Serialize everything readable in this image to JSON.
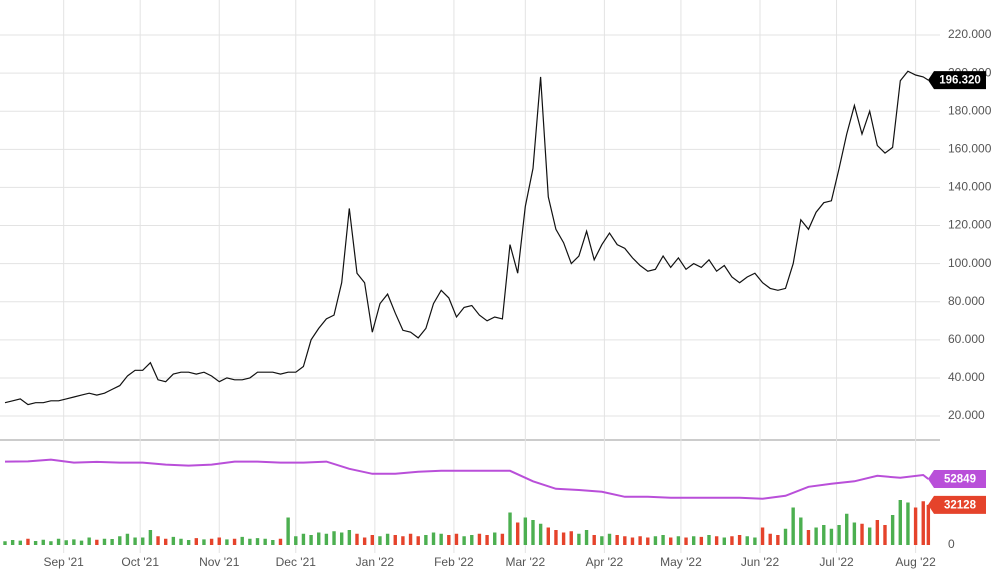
{
  "chart_data": [
    {
      "type": "line",
      "color": "#111111",
      "x": [
        0,
        3,
        6,
        9,
        12,
        15,
        18,
        21,
        24,
        27,
        30,
        33,
        36,
        39,
        42,
        45,
        48,
        51,
        54,
        57,
        60,
        63,
        66,
        69,
        72,
        75,
        78,
        81,
        84,
        87,
        90,
        93,
        96,
        99,
        102,
        105,
        108,
        111,
        114,
        117,
        120,
        123,
        126,
        129,
        132,
        135,
        138,
        141,
        144,
        147,
        150,
        153,
        156,
        159,
        162,
        165,
        168,
        171,
        174,
        177,
        180,
        183,
        186,
        189,
        192,
        195,
        198,
        201,
        204,
        207,
        210,
        213,
        216,
        219,
        222,
        225,
        228,
        231,
        234,
        237,
        240,
        243,
        246,
        249,
        252,
        255,
        258,
        261,
        264,
        267,
        270,
        273,
        276,
        279,
        282,
        285,
        288,
        291,
        294,
        297,
        300,
        303,
        306,
        309,
        312,
        315,
        318,
        321,
        324,
        327,
        330,
        333,
        336,
        339,
        342,
        345,
        348,
        351,
        354,
        357,
        360,
        362
      ],
      "values": [
        27,
        28,
        29,
        26,
        27,
        27,
        28,
        28,
        29,
        30,
        31,
        32,
        31,
        32,
        34,
        36,
        41,
        44,
        44,
        48,
        39,
        38,
        42,
        43,
        43,
        42,
        43,
        41,
        38,
        40,
        39,
        39,
        40,
        43,
        43,
        43,
        42,
        43,
        43,
        46,
        60,
        66,
        71,
        73,
        90,
        129,
        95,
        90,
        64,
        79,
        84,
        74,
        65,
        64,
        61,
        66,
        79,
        86,
        82,
        72,
        77,
        78,
        73,
        70,
        72,
        71,
        110,
        95,
        130,
        150,
        198,
        135,
        118,
        111,
        100,
        104,
        117,
        102,
        110,
        116,
        110,
        108,
        103,
        99,
        96,
        97,
        104,
        98,
        103,
        97,
        100,
        98,
        102,
        96,
        99,
        93,
        90,
        93,
        95,
        90,
        87,
        86,
        87,
        100,
        123,
        118,
        127,
        132,
        133,
        150,
        168,
        183,
        168,
        180,
        162,
        158,
        161,
        196,
        201,
        199,
        198,
        196.32
      ],
      "last_value_label": "196.320",
      "xlim": [
        0,
        365
      ],
      "ylim": [
        9,
        220
      ],
      "yticks": [
        {
          "value": 20,
          "label": "20.000"
        },
        {
          "value": 40,
          "label": "40.000"
        },
        {
          "value": 60,
          "label": "60.000"
        },
        {
          "value": 80,
          "label": "80.000"
        },
        {
          "value": 100,
          "label": "100.000"
        },
        {
          "value": 120,
          "label": "120.000"
        },
        {
          "value": 140,
          "label": "140.000"
        },
        {
          "value": 160,
          "label": "160.000"
        },
        {
          "value": 180,
          "label": "180.000"
        },
        {
          "value": 200,
          "label": "200.000"
        },
        {
          "value": 220,
          "label": "220.000"
        }
      ],
      "grid": true
    },
    {
      "type": "bar",
      "up_color": "#4caf50",
      "down_color": "#e5432b",
      "values": [
        3000,
        4000,
        3500,
        5000,
        3200,
        4200,
        3000,
        5000,
        3800,
        4500,
        3500,
        6000,
        4200,
        5000,
        4800,
        7000,
        9000,
        6000,
        6000,
        12000,
        7000,
        5000,
        6500,
        5000,
        4000,
        5500,
        4500,
        5000,
        6000,
        4500,
        5000,
        6500,
        5000,
        5500,
        5000,
        4000,
        5000,
        22000,
        7000,
        9000,
        8000,
        10000,
        9000,
        11000,
        10000,
        12000,
        9000,
        6000,
        8000,
        7000,
        9000,
        8000,
        7000,
        9000,
        7000,
        8000,
        10000,
        9000,
        8000,
        9000,
        7000,
        8000,
        9000,
        8000,
        10000,
        9000,
        26000,
        18000,
        22000,
        20000,
        17000,
        14000,
        12000,
        10000,
        11000,
        9000,
        12000,
        8000,
        7000,
        9000,
        8000,
        7000,
        6000,
        7000,
        6000,
        7000,
        8000,
        6000,
        7000,
        6000,
        7000,
        6500,
        8000,
        7000,
        6000,
        7000,
        8000,
        7000,
        6000,
        14000,
        9000,
        8000,
        13000,
        30000,
        22000,
        12000,
        14000,
        16000,
        13000,
        16000,
        25000,
        18000,
        17000,
        14000,
        20000,
        16000,
        24000,
        36000,
        34000,
        30000,
        35000,
        32128
      ],
      "line": {
        "color": "#b94fd9",
        "x": [
          0,
          9,
          18,
          27,
          36,
          45,
          54,
          63,
          72,
          81,
          90,
          99,
          108,
          117,
          126,
          135,
          144,
          153,
          162,
          171,
          180,
          189,
          198,
          207,
          216,
          225,
          234,
          243,
          252,
          261,
          270,
          279,
          288,
          297,
          306,
          315,
          324,
          333,
          342,
          351,
          360,
          362
        ],
        "values": [
          66700,
          66900,
          68300,
          65900,
          66500,
          65900,
          65900,
          64300,
          63500,
          64300,
          66700,
          66700,
          65900,
          65900,
          66700,
          61000,
          57000,
          57000,
          58600,
          59400,
          59400,
          59400,
          59400,
          51000,
          45000,
          44000,
          42600,
          38600,
          38600,
          37800,
          37800,
          37800,
          37800,
          37000,
          39400,
          46600,
          49000,
          51000,
          55400,
          53800,
          56000,
          52849
        ]
      },
      "xlim": [
        0,
        365
      ],
      "ylim": [
        0,
        84000
      ],
      "yticks": [
        0
      ],
      "xticks": [
        {
          "value": 23,
          "label": "Sep '21"
        },
        {
          "value": 53,
          "label": "Oct '21"
        },
        {
          "value": 84,
          "label": "Nov '21"
        },
        {
          "value": 114,
          "label": "Dec '21"
        },
        {
          "value": 145,
          "label": "Jan '22"
        },
        {
          "value": 176,
          "label": "Feb '22"
        },
        {
          "value": 204,
          "label": "Mar '22"
        },
        {
          "value": 235,
          "label": "Apr '22"
        },
        {
          "value": 265,
          "label": "May '22"
        },
        {
          "value": 296,
          "label": "Jun '22"
        },
        {
          "value": 326,
          "label": "Jul '22"
        },
        {
          "value": 357,
          "label": "Aug '22"
        }
      ]
    }
  ]
}
